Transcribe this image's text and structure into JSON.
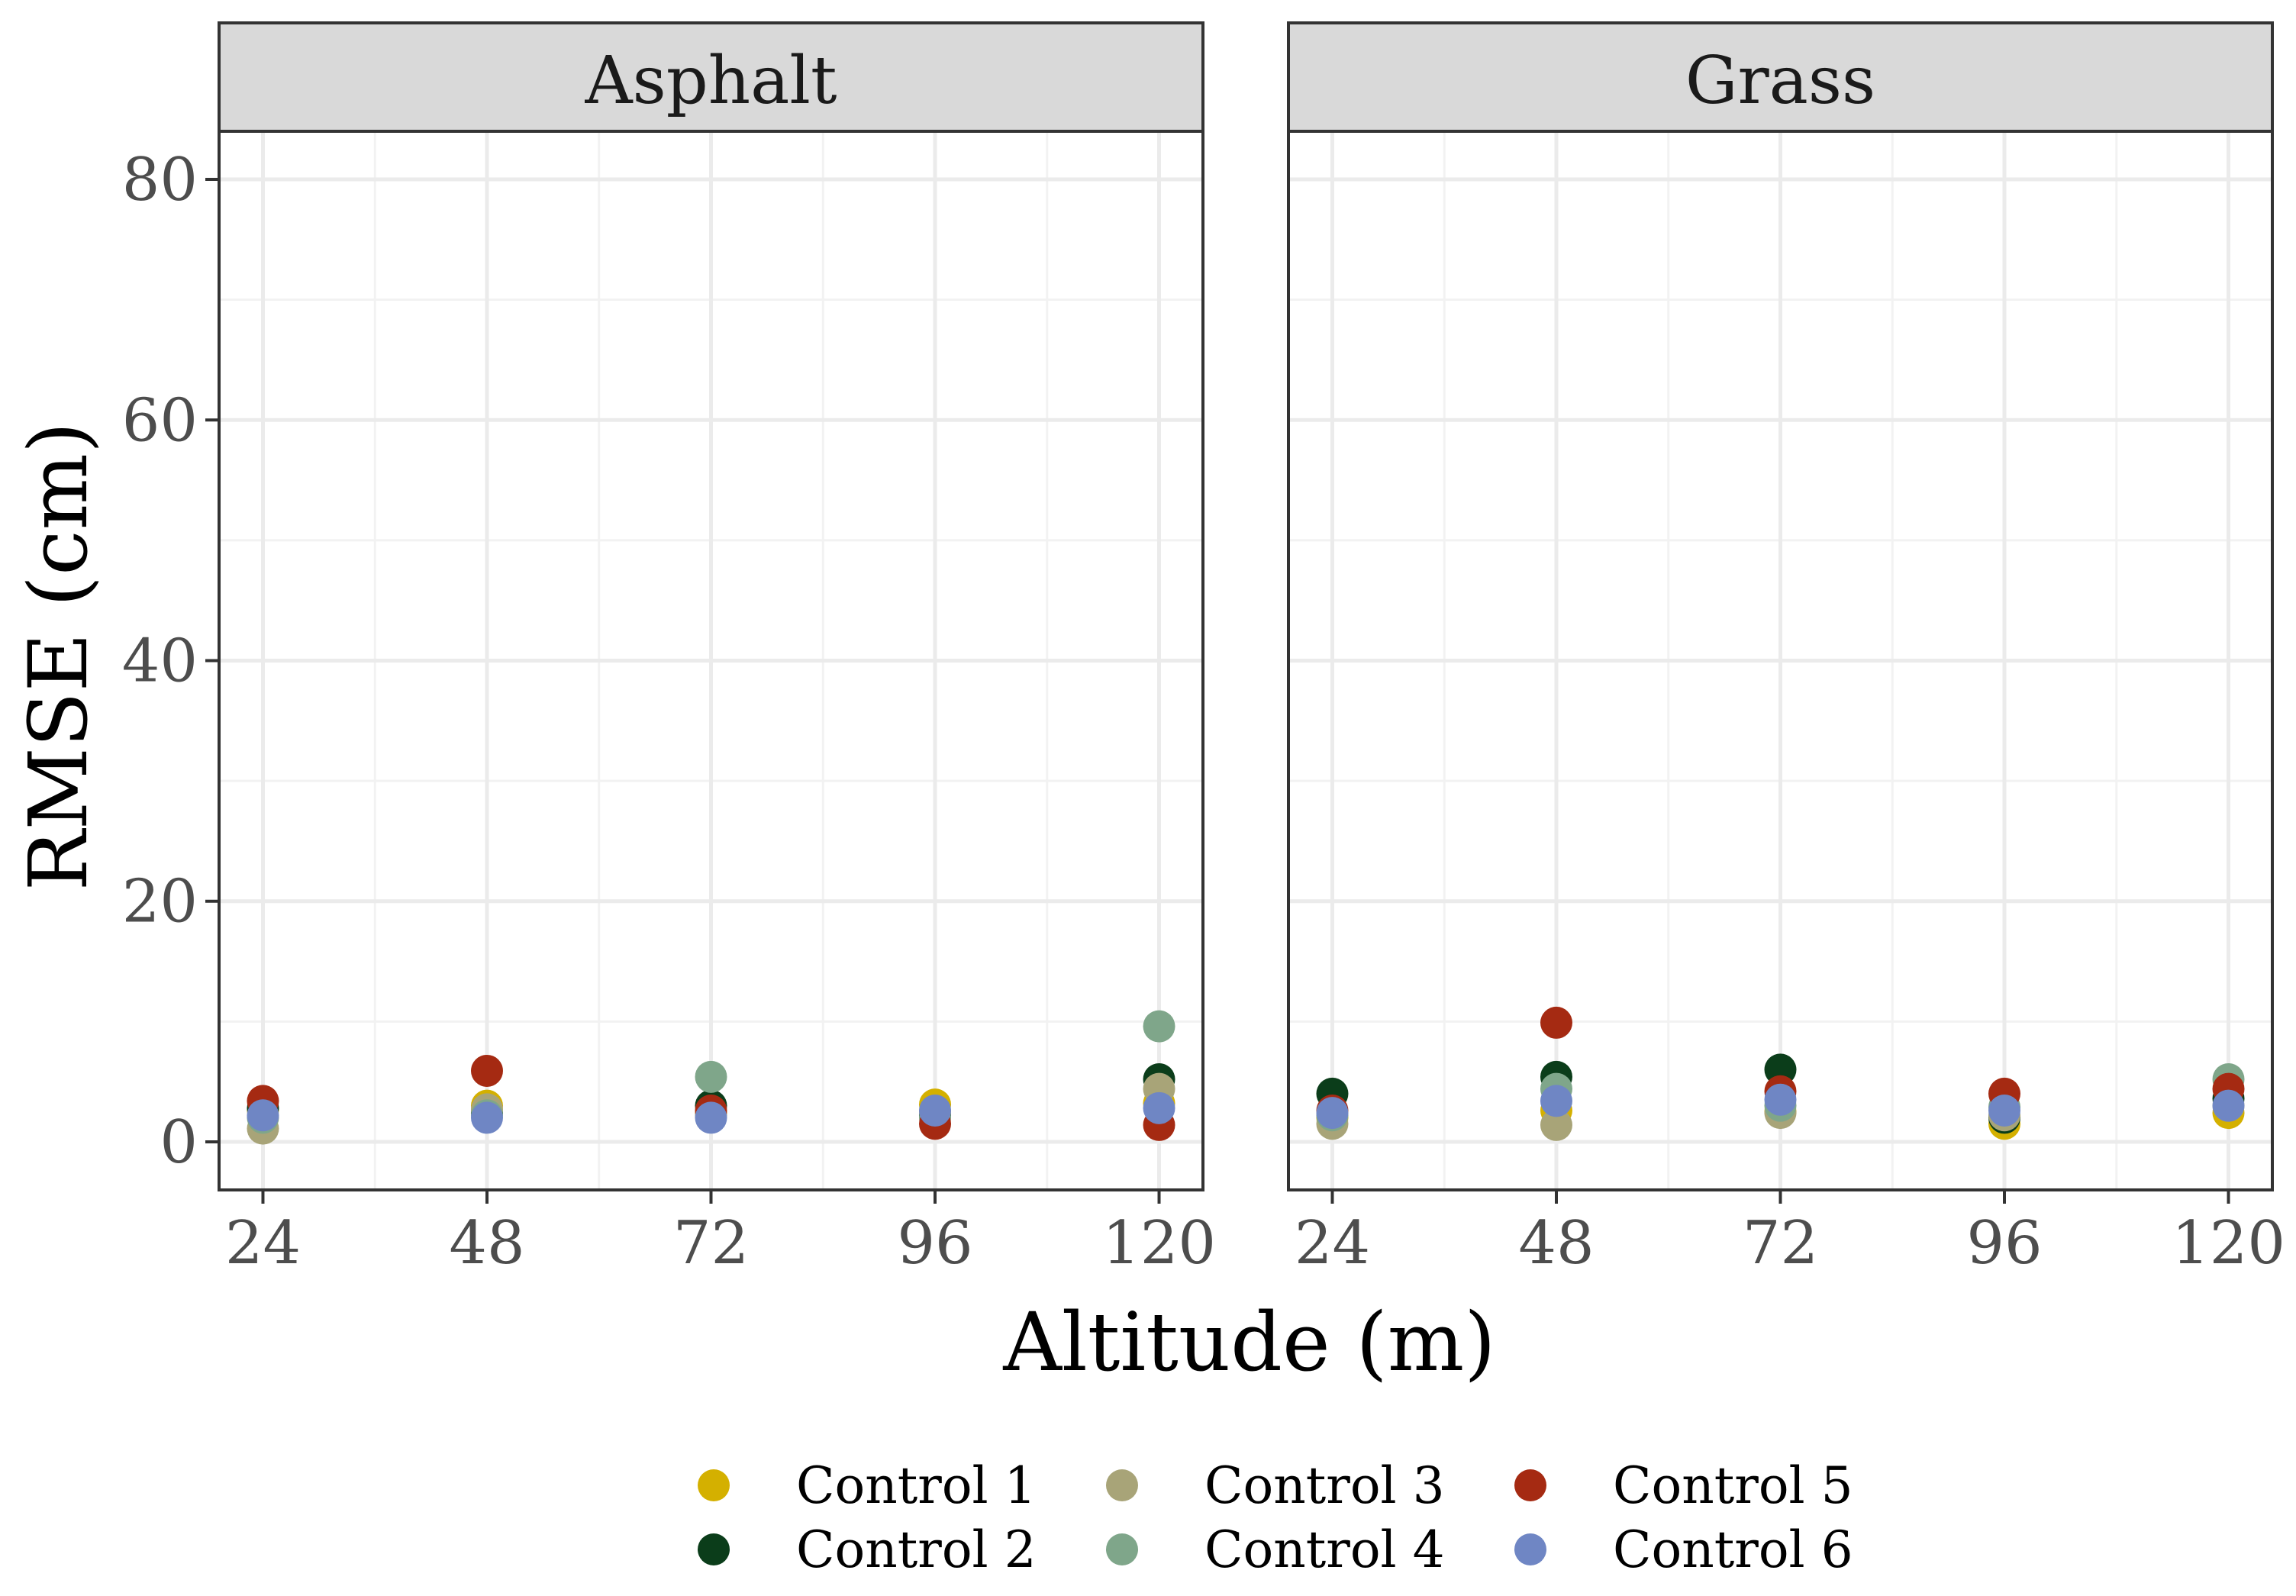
{
  "chart_data": {
    "type": "scatter",
    "xlabel": "Altitude (m)",
    "ylabel": "RMSE (cm)",
    "x_ticks": [
      24,
      48,
      72,
      96,
      120
    ],
    "y_ticks": [
      0,
      20,
      40,
      60,
      80
    ],
    "xlim": [
      19.3,
      124.7
    ],
    "ylim": [
      -4,
      84
    ],
    "grid": true,
    "legend_position": "bottom",
    "series": [
      {
        "name": "Control 1",
        "color": "#d4b000"
      },
      {
        "name": "Control 2",
        "color": "#0b3d1a"
      },
      {
        "name": "Control 3",
        "color": "#a8a478"
      },
      {
        "name": "Control 4",
        "color": "#7fa68a"
      },
      {
        "name": "Control 5",
        "color": "#a52a12"
      },
      {
        "name": "Control 6",
        "color": "#6f86c4"
      }
    ],
    "panels": [
      {
        "title": "Asphalt",
        "points": [
          {
            "series": 0,
            "x": 24,
            "y": 2.6
          },
          {
            "series": 1,
            "x": 24,
            "y": 2.8
          },
          {
            "series": 2,
            "x": 24,
            "y": 1.1
          },
          {
            "series": 3,
            "x": 24,
            "y": 2.0
          },
          {
            "series": 4,
            "x": 24,
            "y": 3.4
          },
          {
            "series": 5,
            "x": 24,
            "y": 2.2
          },
          {
            "series": 0,
            "x": 48,
            "y": 3.0
          },
          {
            "series": 1,
            "x": 48,
            "y": 2.4
          },
          {
            "series": 2,
            "x": 48,
            "y": 2.7
          },
          {
            "series": 3,
            "x": 48,
            "y": 2.2
          },
          {
            "series": 4,
            "x": 48,
            "y": 5.9
          },
          {
            "series": 5,
            "x": 48,
            "y": 2.0
          },
          {
            "series": 0,
            "x": 72,
            "y": 2.4
          },
          {
            "series": 1,
            "x": 72,
            "y": 3.0
          },
          {
            "series": 2,
            "x": 72,
            "y": 2.2
          },
          {
            "series": 3,
            "x": 72,
            "y": 5.4
          },
          {
            "series": 4,
            "x": 72,
            "y": 2.6
          },
          {
            "series": 5,
            "x": 72,
            "y": 2.0
          },
          {
            "series": 0,
            "x": 96,
            "y": 3.1
          },
          {
            "series": 1,
            "x": 96,
            "y": 2.2
          },
          {
            "series": 2,
            "x": 96,
            "y": 2.5
          },
          {
            "series": 3,
            "x": 96,
            "y": 2.0
          },
          {
            "series": 4,
            "x": 96,
            "y": 1.5
          },
          {
            "series": 5,
            "x": 96,
            "y": 2.6
          },
          {
            "series": 0,
            "x": 120,
            "y": 3.2
          },
          {
            "series": 1,
            "x": 120,
            "y": 5.2
          },
          {
            "series": 2,
            "x": 120,
            "y": 4.4
          },
          {
            "series": 3,
            "x": 120,
            "y": 9.6
          },
          {
            "series": 4,
            "x": 120,
            "y": 1.4
          },
          {
            "series": 5,
            "x": 120,
            "y": 2.8
          }
        ]
      },
      {
        "title": "Grass",
        "points": [
          {
            "series": 0,
            "x": 24,
            "y": 2.0
          },
          {
            "series": 1,
            "x": 24,
            "y": 4.0
          },
          {
            "series": 2,
            "x": 24,
            "y": 1.5
          },
          {
            "series": 3,
            "x": 24,
            "y": 2.2
          },
          {
            "series": 4,
            "x": 24,
            "y": 2.6
          },
          {
            "series": 5,
            "x": 24,
            "y": 2.4
          },
          {
            "series": 0,
            "x": 48,
            "y": 2.6
          },
          {
            "series": 1,
            "x": 48,
            "y": 5.4
          },
          {
            "series": 2,
            "x": 48,
            "y": 1.4
          },
          {
            "series": 3,
            "x": 48,
            "y": 4.4
          },
          {
            "series": 4,
            "x": 48,
            "y": 9.9
          },
          {
            "series": 5,
            "x": 48,
            "y": 3.4
          },
          {
            "series": 0,
            "x": 72,
            "y": 2.5
          },
          {
            "series": 1,
            "x": 72,
            "y": 6.0
          },
          {
            "series": 2,
            "x": 72,
            "y": 2.4
          },
          {
            "series": 3,
            "x": 72,
            "y": 3.0
          },
          {
            "series": 4,
            "x": 72,
            "y": 4.2
          },
          {
            "series": 5,
            "x": 72,
            "y": 3.5
          },
          {
            "series": 0,
            "x": 96,
            "y": 1.5
          },
          {
            "series": 1,
            "x": 96,
            "y": 2.0
          },
          {
            "series": 2,
            "x": 96,
            "y": 2.2
          },
          {
            "series": 3,
            "x": 96,
            "y": 2.9
          },
          {
            "series": 4,
            "x": 96,
            "y": 4.0
          },
          {
            "series": 5,
            "x": 96,
            "y": 2.6
          },
          {
            "series": 0,
            "x": 120,
            "y": 2.4
          },
          {
            "series": 1,
            "x": 120,
            "y": 3.6
          },
          {
            "series": 2,
            "x": 120,
            "y": 3.0
          },
          {
            "series": 3,
            "x": 120,
            "y": 5.2
          },
          {
            "series": 4,
            "x": 120,
            "y": 4.4
          },
          {
            "series": 5,
            "x": 120,
            "y": 3.0
          }
        ]
      }
    ]
  }
}
